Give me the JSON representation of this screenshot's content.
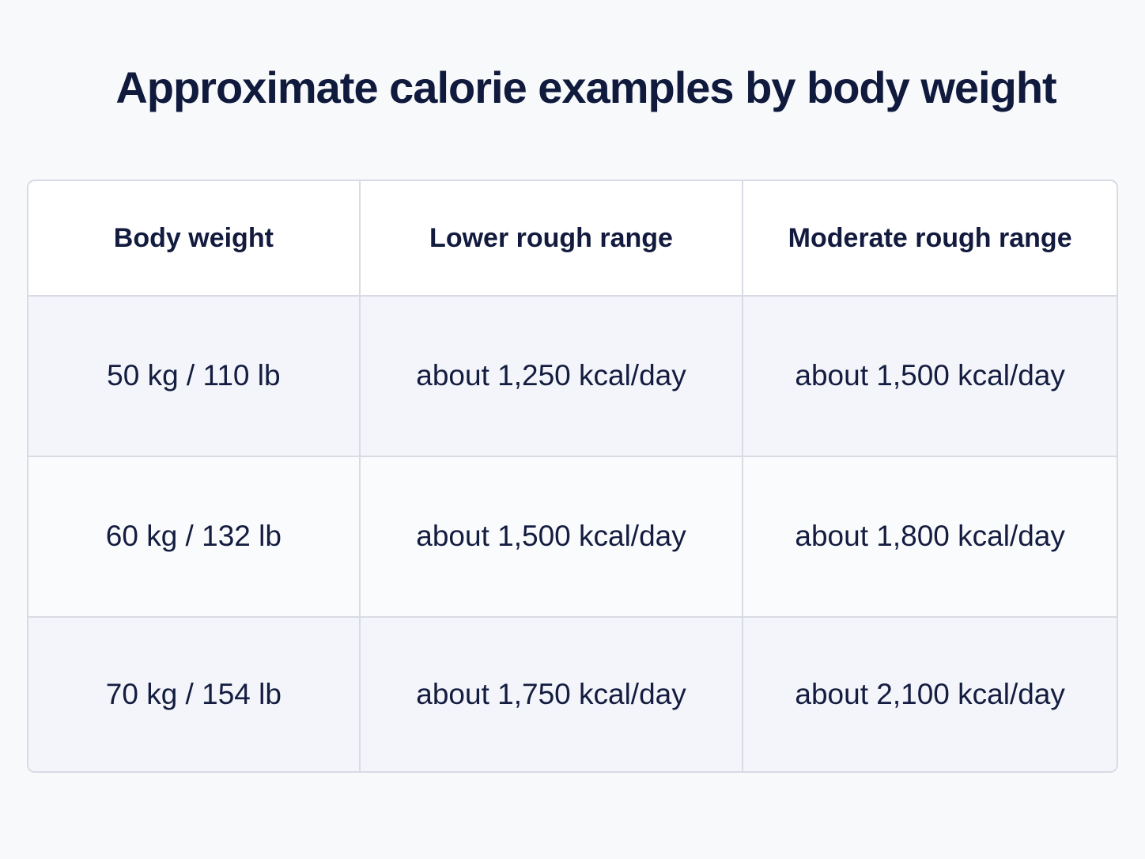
{
  "title": "Approximate calorie examples by body weight",
  "table": {
    "header": [
      "Body weight",
      "Lower rough range",
      "Moderate rough range"
    ],
    "rows": [
      [
        "50 kg / 110 lb",
        "about 1,250 kcal/day",
        "about 1,500 kcal/day"
      ],
      [
        "60 kg / 132 lb",
        "about 1,500 kcal/day",
        "about 1,800 kcal/day"
      ],
      [
        "70 kg / 154 lb",
        "about 1,750 kcal/day",
        "about 2,100 kcal/day"
      ]
    ]
  }
}
